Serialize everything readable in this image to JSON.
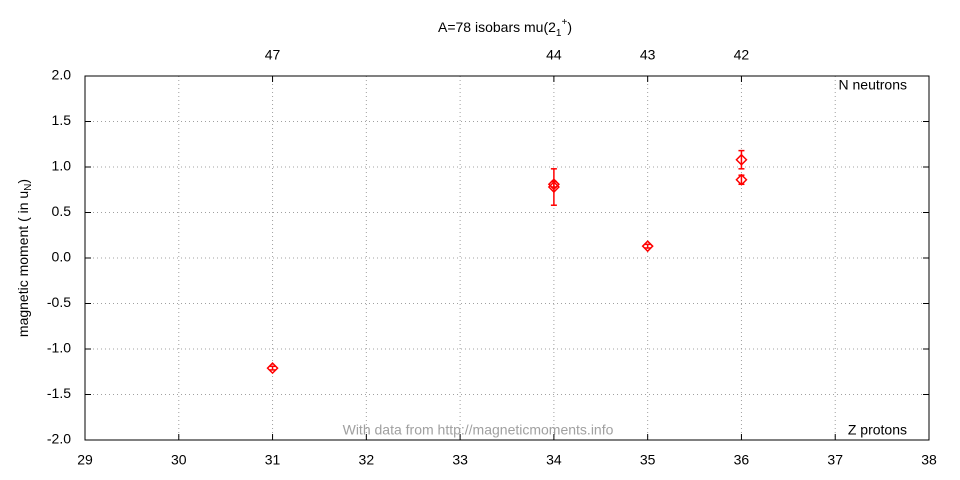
{
  "chart_data": {
    "type": "scatter",
    "title": "A=78 isobars mu(2",
    "title_sub": "1",
    "title_sup": "+",
    "title_end": ")",
    "y_label": "magnetic moment ( in u",
    "y_label_sub": "N",
    "y_label_end": ")",
    "x_label": "Z protons",
    "x2_label": "N neutrons",
    "annotation": "With data from http://magneticmoments.info",
    "x": [
      31,
      34,
      34,
      35,
      36,
      36
    ],
    "values": [
      -1.21,
      0.81,
      0.78,
      0.13,
      1.08,
      0.86
    ],
    "errors": [
      0.02,
      0.03,
      0.2,
      0.02,
      0.1,
      0.05
    ],
    "color": "#ff0000",
    "xlim": [
      29,
      38
    ],
    "xticks": [
      29,
      30,
      31,
      32,
      33,
      34,
      35,
      36,
      37,
      38
    ],
    "x2ticks": [
      {
        "value": 31,
        "label": "47"
      },
      {
        "value": 34,
        "label": "44"
      },
      {
        "value": 35,
        "label": "43"
      },
      {
        "value": 36,
        "label": "42"
      }
    ],
    "ylim": [
      -2,
      2
    ],
    "yticks": [
      {
        "value": -2,
        "label": "-2.0"
      },
      {
        "value": -1.5,
        "label": "-1.5"
      },
      {
        "value": -1,
        "label": "-1.0"
      },
      {
        "value": -0.5,
        "label": "-0.5"
      },
      {
        "value": 0,
        "label": "0.0"
      },
      {
        "value": 0.5,
        "label": "0.5"
      },
      {
        "value": 1,
        "label": "1.0"
      },
      {
        "value": 1.5,
        "label": "1.5"
      },
      {
        "value": 2,
        "label": "2.0"
      }
    ],
    "grid": true
  }
}
